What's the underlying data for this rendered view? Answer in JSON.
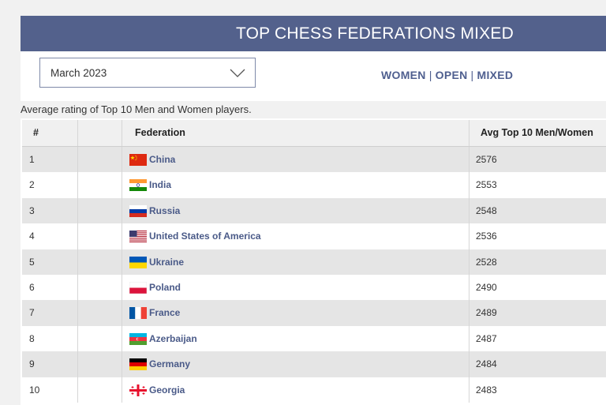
{
  "header": {
    "title": "TOP CHESS FEDERATIONS MIXED"
  },
  "period_select": {
    "value": "March 2023"
  },
  "filters": {
    "women": "WOMEN",
    "open": "OPEN",
    "mixed": "MIXED",
    "separator": "|"
  },
  "subtitle": "Average rating of Top 10 Men and Women players.",
  "table": {
    "columns": {
      "rank": "#",
      "federation": "Federation",
      "avg": "Avg Top 10 Men/Women"
    },
    "rows": [
      {
        "rank": "1",
        "federation": "China",
        "avg": "2576",
        "flag": "china-flag-icon"
      },
      {
        "rank": "2",
        "federation": "India",
        "avg": "2553",
        "flag": "india-flag-icon"
      },
      {
        "rank": "3",
        "federation": "Russia",
        "avg": "2548",
        "flag": "russia-flag-icon"
      },
      {
        "rank": "4",
        "federation": "United States of America",
        "avg": "2536",
        "flag": "usa-flag-icon"
      },
      {
        "rank": "5",
        "federation": "Ukraine",
        "avg": "2528",
        "flag": "ukraine-flag-icon"
      },
      {
        "rank": "6",
        "federation": "Poland",
        "avg": "2490",
        "flag": "poland-flag-icon"
      },
      {
        "rank": "7",
        "federation": "France",
        "avg": "2489",
        "flag": "france-flag-icon"
      },
      {
        "rank": "8",
        "federation": "Azerbaijan",
        "avg": "2487",
        "flag": "azerbaijan-flag-icon"
      },
      {
        "rank": "9",
        "federation": "Germany",
        "avg": "2484",
        "flag": "germany-flag-icon"
      },
      {
        "rank": "10",
        "federation": "Georgia",
        "avg": "2483",
        "flag": "georgia-flag-icon"
      }
    ]
  },
  "colors": {
    "title_bar": "#53618c",
    "link": "#4a5a88",
    "row_alt": "#e5e5e5"
  }
}
